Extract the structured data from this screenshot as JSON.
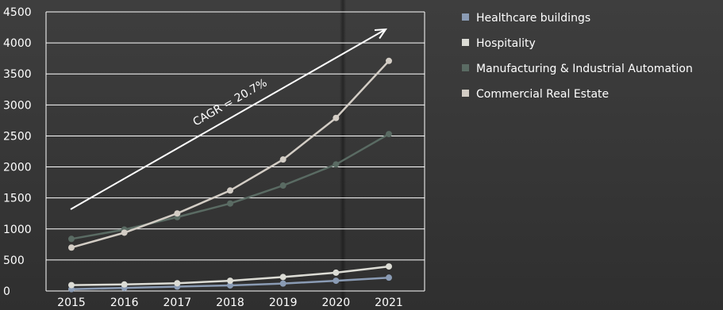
{
  "chart_data": {
    "type": "line",
    "categories": [
      "2015",
      "2016",
      "2017",
      "2018",
      "2019",
      "2020",
      "2021"
    ],
    "ylim": [
      0,
      4500
    ],
    "yticks": [
      0,
      500,
      1000,
      1500,
      2000,
      2500,
      3000,
      3500,
      4000,
      4500
    ],
    "ytick_labels": [
      "0",
      "500",
      "1000",
      "1500",
      "2000",
      "2500",
      "3000",
      "3500",
      "4000",
      "4500"
    ],
    "grid": true,
    "legend_position": "right",
    "series": [
      {
        "name": "Healthcare buildings",
        "color": "#8a9bb4",
        "values": [
          30,
          50,
          70,
          90,
          120,
          165,
          215
        ]
      },
      {
        "name": "Hospitality",
        "color": "#dcdcd5",
        "values": [
          95,
          105,
          125,
          165,
          225,
          295,
          395
        ]
      },
      {
        "name": "Manufacturing & Industrial Automation",
        "color": "#5a6b63",
        "values": [
          840,
          990,
          1190,
          1410,
          1700,
          2040,
          2530
        ]
      },
      {
        "name": "Commercial Real Estate",
        "color": "#d3cdc5",
        "values": [
          700,
          940,
          1250,
          1620,
          2120,
          2790,
          3710
        ]
      }
    ],
    "annotation": {
      "text": "CAGR = 20.7%"
    }
  }
}
